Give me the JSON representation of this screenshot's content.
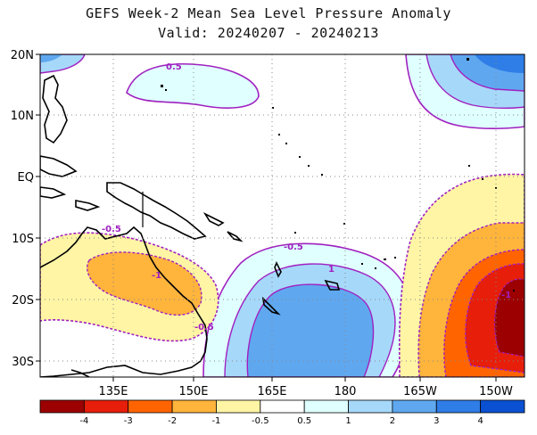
{
  "title_line1": "GEFS Week-2 Mean Sea Level Pressure Anomaly",
  "title_line2": "Valid: 20240207 - 20240213",
  "latitude_labels": [
    "20N",
    "10N",
    "EQ",
    "10S",
    "20S",
    "30S"
  ],
  "longitude_labels": [
    "135E",
    "150E",
    "165E",
    "180",
    "165W",
    "150W"
  ],
  "colorbar": {
    "labels": [
      "-4",
      "-3",
      "-2",
      "-1",
      "-0.5",
      "0.5",
      "1",
      "2",
      "3",
      "4"
    ],
    "colors": [
      "#9c0000",
      "#e61e0a",
      "#ff6400",
      "#ffb43c",
      "#fff5a5",
      "#ffffff",
      "#e0ffff",
      "#a6d8fa",
      "#5fa8f0",
      "#2f7de6",
      "#0a50d2"
    ]
  },
  "contour_labels": [
    "0.5",
    "-0.5",
    "-1",
    "-0.5",
    "-0.5",
    "1",
    "-1"
  ],
  "colors": {
    "contour_line": "#a020c0",
    "grid": "#888888",
    "coast": "#000000"
  }
}
